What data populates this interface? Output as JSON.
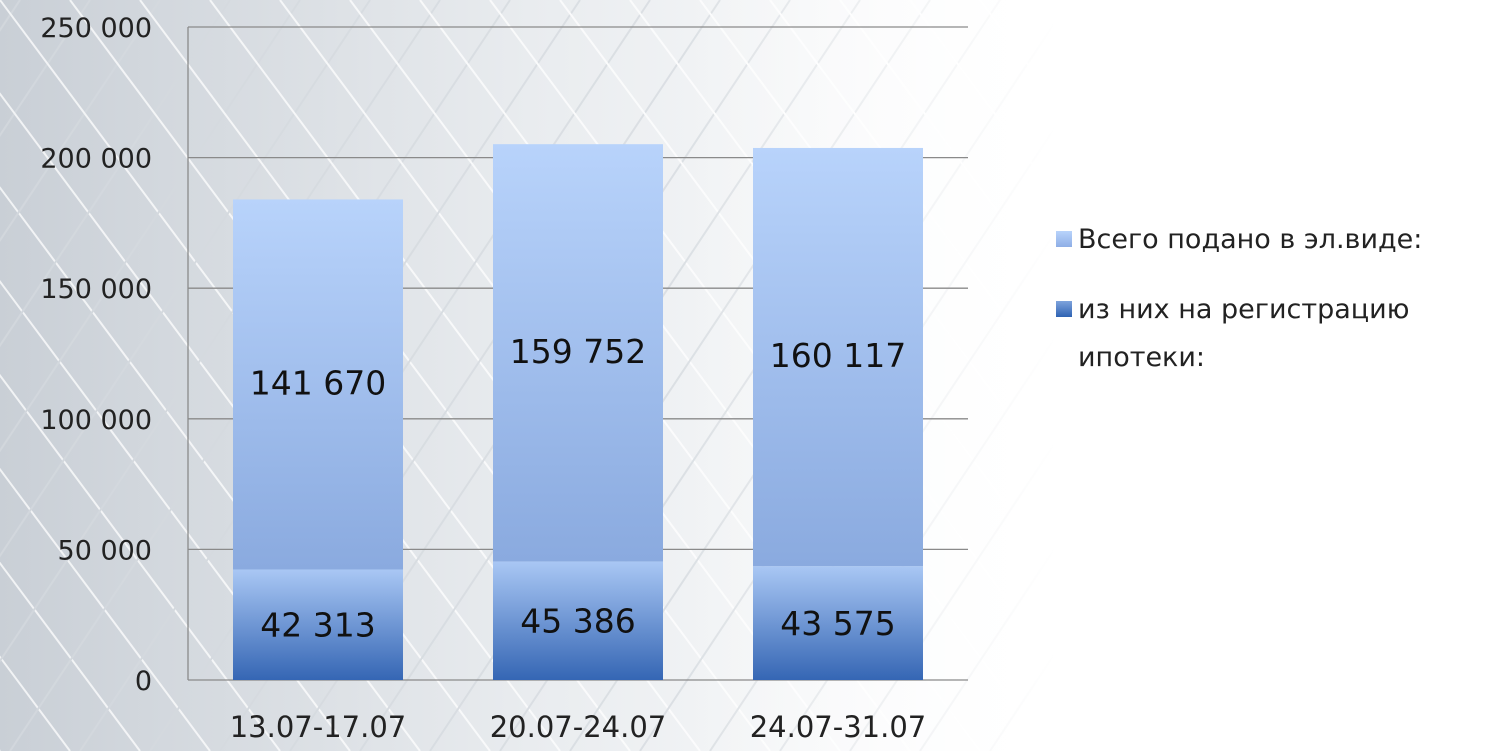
{
  "chart_data": {
    "type": "bar",
    "stacked": true,
    "categories": [
      "13.07-17.07",
      "20.07-24.07",
      "24.07-31.07"
    ],
    "series": [
      {
        "name": "из них на регистрацию ипотеки:",
        "values": [
          42313,
          45386,
          43575
        ],
        "labels": [
          "42 313",
          "45 386",
          "43 575"
        ],
        "color": "#3f72c0"
      },
      {
        "name": "Всего подано в эл.виде:",
        "values": [
          141670,
          159752,
          160117
        ],
        "labels": [
          "141 670",
          "159 752",
          "160 117"
        ],
        "color": "#a8c6f5"
      }
    ],
    "y_ticks": [
      0,
      50000,
      100000,
      150000,
      200000,
      250000
    ],
    "y_tick_labels": [
      "0",
      "50 000",
      "100 000",
      "150 000",
      "200 000",
      "250 000"
    ],
    "ylim": [
      0,
      250000
    ],
    "grid": true,
    "legend_position": "right"
  },
  "legend": {
    "total_label": "Всего подано в эл.виде:",
    "mortgage_label": "из них на регистрацию ипотеки:"
  },
  "colors": {
    "total_top": "#b8d3fb",
    "total_bottom": "#8aaadf",
    "mortgage_top": "#a9c7f4",
    "mortgage_bottom": "#3566b4",
    "grid": "#8a8a8a"
  }
}
